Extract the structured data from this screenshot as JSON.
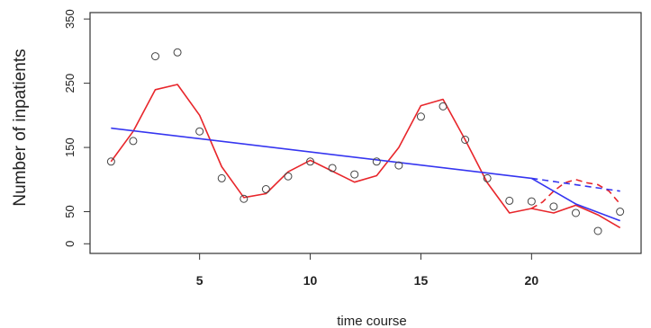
{
  "chart_data": {
    "type": "scatter",
    "title": "",
    "xlabel": "time course",
    "ylabel": "Number of inpatients",
    "xlim": [
      0.05,
      24.95
    ],
    "ylim": [
      -15,
      360
    ],
    "xticks": [
      5,
      10,
      15,
      20
    ],
    "yticks": [
      0,
      50,
      150,
      250,
      350
    ],
    "grid": false,
    "legend": "none",
    "points": {
      "x": [
        1,
        2,
        3,
        4,
        5,
        6,
        7,
        8,
        9,
        10,
        11,
        12,
        13,
        14,
        15,
        16,
        17,
        18,
        19,
        20,
        21,
        22,
        23,
        24
      ],
      "y": [
        128,
        160,
        292,
        298,
        175,
        102,
        70,
        85,
        105,
        128,
        118,
        108,
        128,
        122,
        198,
        214,
        162,
        102,
        67,
        66,
        58,
        48,
        20,
        50
      ]
    },
    "series": [
      {
        "color": "#e8262b",
        "style": "solid",
        "x": [
          1,
          2,
          3,
          4,
          5,
          6,
          7,
          8,
          9,
          10,
          11,
          12,
          13,
          14,
          15,
          16,
          17,
          18,
          19,
          20,
          21,
          22,
          23,
          24
        ],
        "y": [
          128,
          175,
          240,
          248,
          200,
          120,
          72,
          78,
          112,
          130,
          113,
          96,
          106,
          150,
          215,
          225,
          162,
          95,
          48,
          55,
          48,
          60,
          45,
          25
        ]
      },
      {
        "color": "#e8262b",
        "style": "dashed",
        "x": [
          20,
          20.5,
          21,
          21.5,
          22,
          22.5,
          23,
          23.5,
          24
        ],
        "y": [
          55,
          65,
          82,
          95,
          100,
          95,
          92,
          82,
          62
        ]
      },
      {
        "color": "#3535f0",
        "style": "solid",
        "x": [
          1,
          20,
          22,
          24
        ],
        "y": [
          180,
          102,
          62,
          36
        ]
      },
      {
        "color": "#3535f0",
        "style": "dashed",
        "x": [
          20,
          24
        ],
        "y": [
          102,
          82
        ]
      }
    ],
    "point_color": "#444444"
  }
}
